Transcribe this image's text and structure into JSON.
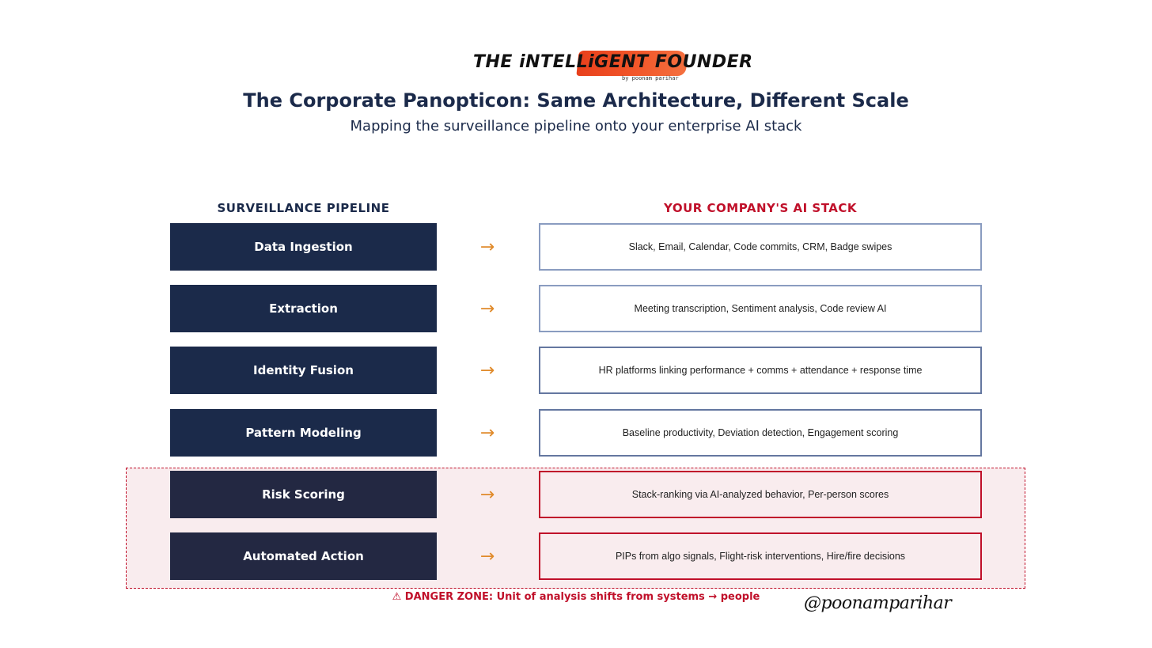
{
  "logo": {
    "title": "THE iNTELLiGENT FOUNDER",
    "byline": "by poonam parihar",
    "brush_color": "#f04a22"
  },
  "header": {
    "title": "The Corporate Panopticon: Same Architecture, Different Scale",
    "subtitle": "Mapping the surveillance pipeline onto your enterprise AI stack"
  },
  "columns": {
    "left_header": "SURVEILLANCE PIPELINE",
    "right_header": "YOUR COMPANY'S AI STACK"
  },
  "arrow_glyph": "→",
  "colors": {
    "navy": "#1b2a4a",
    "danger_navy": "#232842",
    "danger_red": "#c0102a",
    "arrow_orange": "#e08a2a",
    "danger_bg": "#f9ecee"
  },
  "rows": [
    {
      "stage": "Data Ingestion",
      "stack": "Slack, Email, Calendar, Code commits, CRM, Badge swipes",
      "danger": false
    },
    {
      "stage": "Extraction",
      "stack": "Meeting transcription, Sentiment analysis, Code review AI",
      "danger": false
    },
    {
      "stage": "Identity Fusion",
      "stack": "HR platforms linking performance + comms + attendance + response time",
      "danger": false
    },
    {
      "stage": "Pattern Modeling",
      "stack": "Baseline productivity, Deviation detection, Engagement scoring",
      "danger": false
    },
    {
      "stage": "Risk Scoring",
      "stack": "Stack-ranking via AI-analyzed behavior, Per-person scores",
      "danger": true
    },
    {
      "stage": "Automated Action",
      "stack": "PIPs from algo signals, Flight-risk interventions, Hire/fire decisions",
      "danger": true
    }
  ],
  "danger_caption": "⚠ DANGER ZONE: Unit of analysis shifts from systems → people",
  "signature": "@poonamparihar"
}
